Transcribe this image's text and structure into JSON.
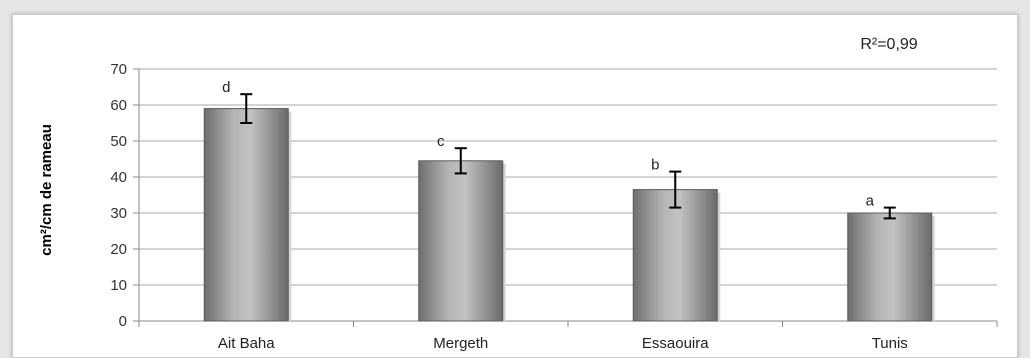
{
  "chart_data": {
    "type": "bar",
    "categories": [
      "Ait Baha",
      "Mergeth",
      "Essaouira",
      "Tunis"
    ],
    "values": [
      59,
      44.5,
      36.5,
      30
    ],
    "errors": [
      4,
      3.5,
      5,
      1.5
    ],
    "significance_letters": [
      "d",
      "c",
      "b",
      "a"
    ],
    "ylabel": "cm²/cm de rameau",
    "xlabel": "",
    "title": "",
    "annotation": "R²=0,99",
    "ylim": [
      0,
      70
    ],
    "yticks": [
      "0",
      "10",
      "20",
      "30",
      "40",
      "50",
      "60",
      "70"
    ],
    "grid": true,
    "bar_color": "#9a9a9a"
  }
}
